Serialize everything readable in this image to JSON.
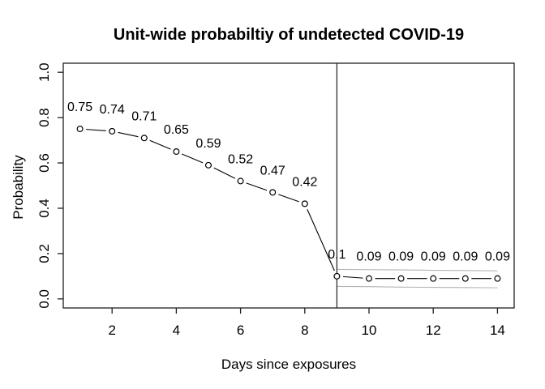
{
  "colors": {
    "background": "#ffffff",
    "foreground": "#000000",
    "axis": "#1f1f1f",
    "ci_line": "#b4b4b4",
    "marker_fill": "#ffffff"
  },
  "chart_data": {
    "type": "line",
    "title": "Unit-wide probabiltiy of undetected COVID-19",
    "xlabel": "Days since exposures",
    "ylabel": "Probability",
    "x": [
      1,
      2,
      3,
      4,
      5,
      6,
      7,
      8,
      9,
      10,
      11,
      12,
      13,
      14
    ],
    "values": [
      0.75,
      0.74,
      0.71,
      0.65,
      0.59,
      0.52,
      0.47,
      0.42,
      0.1,
      0.09,
      0.09,
      0.09,
      0.09,
      0.09
    ],
    "point_labels": [
      "0.75",
      "0.74",
      "0.71",
      "0.65",
      "0.59",
      "0.52",
      "0.47",
      "0.42",
      "0.1",
      "0.09",
      "0.09",
      "0.09",
      "0.09",
      "0.09"
    ],
    "x_ticks": [
      2,
      4,
      6,
      8,
      10,
      12,
      14
    ],
    "y_ticks": [
      "0.0",
      "0.2",
      "0.4",
      "0.6",
      "0.8",
      "1.0"
    ],
    "xlim": [
      1,
      14
    ],
    "ylim": [
      0,
      1
    ],
    "vline_x": 9,
    "ci_band": {
      "x": [
        9,
        10,
        11,
        12,
        13,
        14
      ],
      "upper": [
        0.13,
        0.129,
        0.128,
        0.126,
        0.125,
        0.124
      ],
      "lower": [
        0.055,
        0.054,
        0.052,
        0.051,
        0.05,
        0.049
      ]
    },
    "grid": false,
    "legend": null,
    "marker": "open-circle",
    "line_style": "segments-with-point-gaps"
  }
}
